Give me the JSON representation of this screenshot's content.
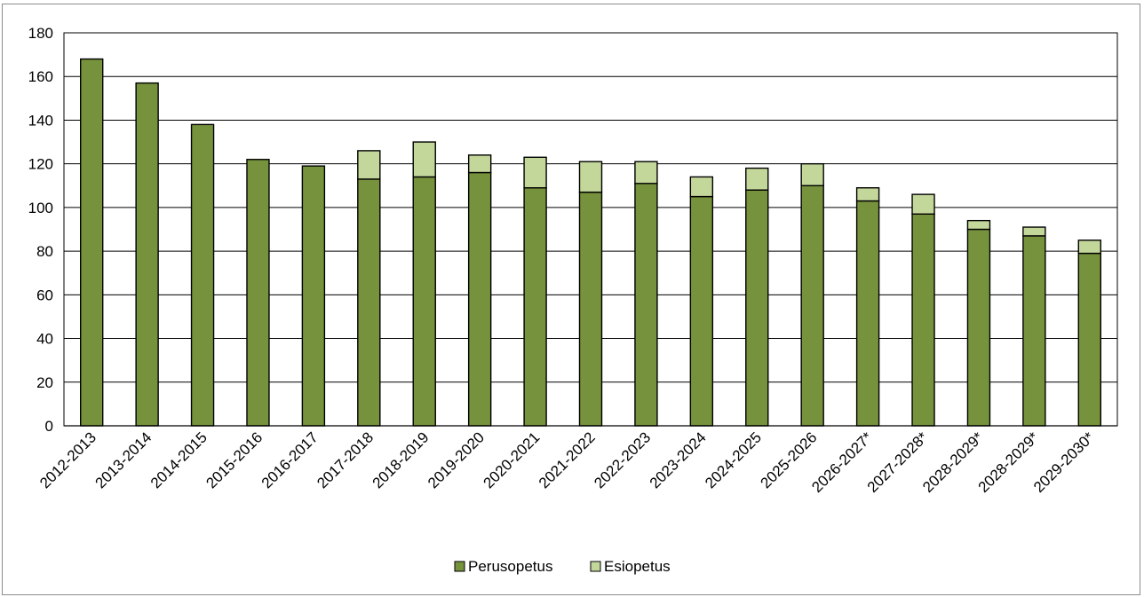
{
  "chart_data": {
    "type": "bar",
    "stacked": true,
    "categories": [
      "2012-2013",
      "2013-2014",
      "2014-2015",
      "2015-2016",
      "2016-2017",
      "2017-2018",
      "2018-2019",
      "2019-2020",
      "2020-2021",
      "2021-2022",
      "2022-2023",
      "2023-2024",
      "2024-2025",
      "2025-2026",
      "2026-2027*",
      "2027-2028*",
      "2028-2029*",
      "2028-2029*",
      "2029-2030*"
    ],
    "series": [
      {
        "name": "Perusopetus",
        "color": "#76923c",
        "values": [
          168,
          157,
          138,
          122,
          119,
          113,
          114,
          116,
          109,
          107,
          111,
          105,
          108,
          110,
          103,
          97,
          90,
          87,
          79
        ]
      },
      {
        "name": "Esiopetus",
        "color": "#c4d79b",
        "values": [
          0,
          0,
          0,
          0,
          0,
          13,
          16,
          8,
          14,
          14,
          10,
          9,
          10,
          10,
          6,
          9,
          4,
          4,
          6
        ]
      }
    ],
    "ylim": [
      0,
      180
    ],
    "yticks": [
      "0",
      "20",
      "40",
      "60",
      "80",
      "100",
      "120",
      "140",
      "160",
      "180"
    ],
    "grid": true,
    "legend_position": "bottom",
    "title": "",
    "xlabel": "",
    "ylabel": ""
  }
}
